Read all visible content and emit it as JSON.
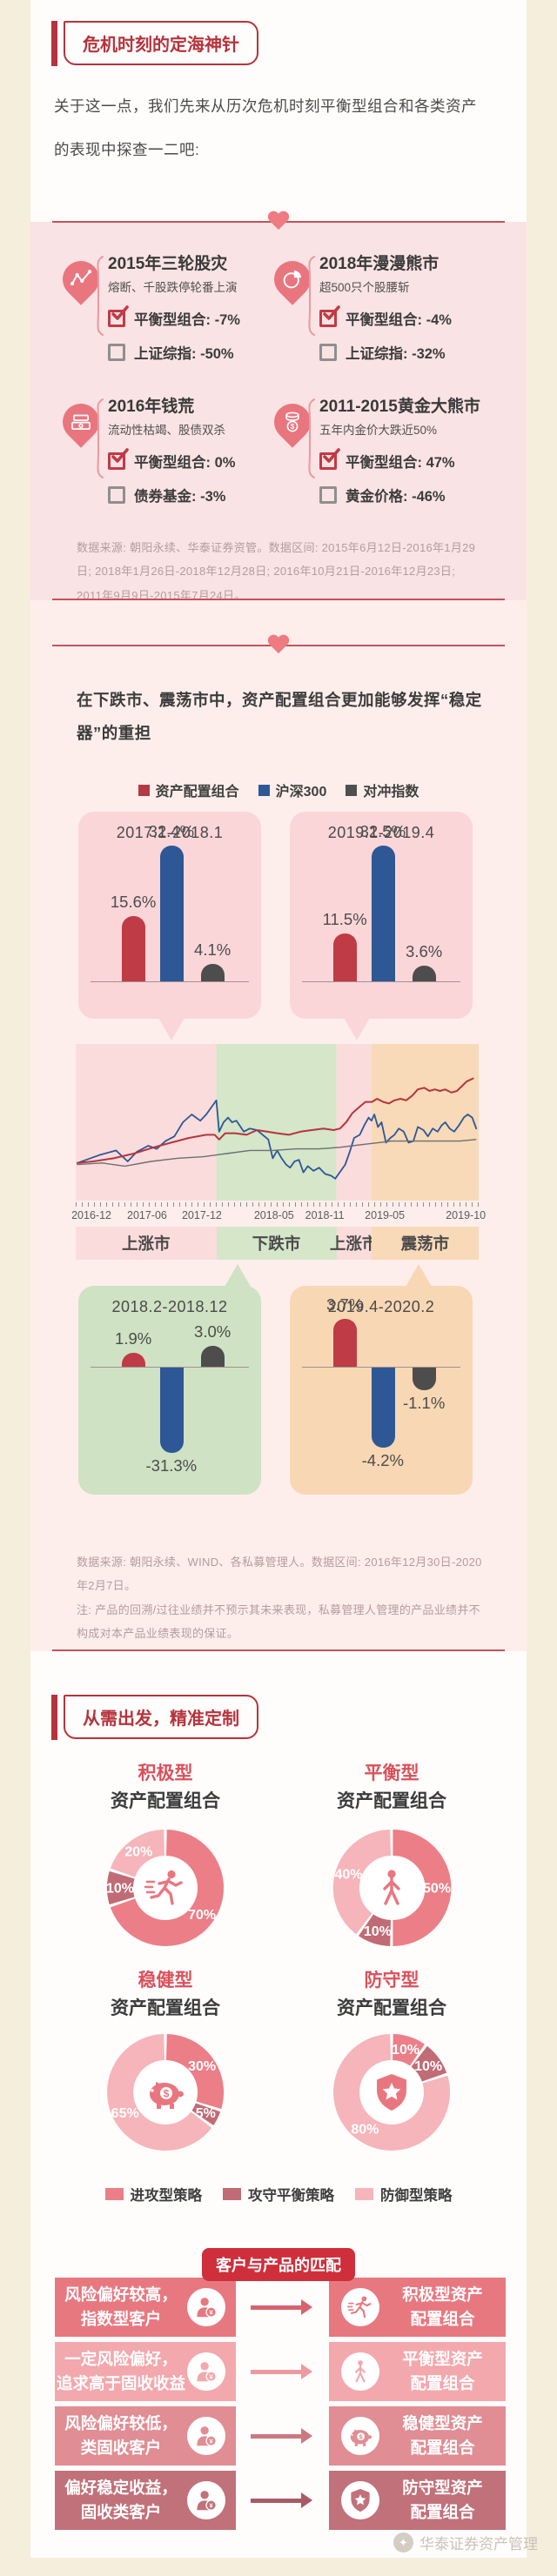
{
  "page": {
    "outer_bg": "#f6eedd",
    "column_bg": "#fffdfc",
    "accent_red": "#b5333c",
    "line_red": "#c8505a",
    "heart_color": "#ee7b81"
  },
  "section1": {
    "title": "危机时刻的定海神针",
    "intro": "关于这一点，我们先来从历次危机时刻平衡型组合和各类资产的表现中探查一二吧:",
    "panel_bg": "#fae3e4",
    "crisis_cards": [
      {
        "icon": "line-chart-pin-icon",
        "title": "2015年三轮股灾",
        "subtitle": "熔断、千股跌停轮番上演",
        "metrics": [
          {
            "checked": true,
            "label": "平衡型组合",
            "value": "-7%"
          },
          {
            "checked": false,
            "label": "上证综指",
            "value": "-50%"
          }
        ]
      },
      {
        "icon": "pie-chart-pin-icon",
        "title": "2018年漫漫熊市",
        "subtitle": "超500只个股腰斩",
        "metrics": [
          {
            "checked": true,
            "label": "平衡型组合",
            "value": "-4%"
          },
          {
            "checked": false,
            "label": "上证综指",
            "value": "-32%"
          }
        ]
      },
      {
        "icon": "cash-pin-icon",
        "title": "2016年钱荒",
        "subtitle": "流动性枯竭、股债双杀",
        "metrics": [
          {
            "checked": true,
            "label": "平衡型组合",
            "value": "0%"
          },
          {
            "checked": false,
            "label": "债券基金",
            "value": "-3%"
          }
        ]
      },
      {
        "icon": "coins-pin-icon",
        "title": "2011-2015黄金大熊市",
        "subtitle": "五年内金价大跌近50%",
        "metrics": [
          {
            "checked": true,
            "label": "平衡型组合",
            "value": "47%"
          },
          {
            "checked": false,
            "label": "黄金价格",
            "value": "-46%"
          }
        ]
      }
    ],
    "source_note": "数据来源: 朝阳永续、华泰证券资管。数据区间: 2015年6月12日-2016年1月29日; 2018年1月26日-2018年12月28日; 2016年10月21日-2016年12月23日; 2011年9月9日-2015年7月24日。"
  },
  "section2": {
    "heading": "在下跌市、震荡市中，资产配置组合更加能够发挥“稳定器”的重担",
    "legend": [
      {
        "label": "资产配置组合",
        "color": "#b23a44"
      },
      {
        "label": "沪深300",
        "color": "#2e5796"
      },
      {
        "label": "对冲指数",
        "color": "#4f4f4f"
      }
    ],
    "chart_data": [
      {
        "type": "bar",
        "title": "2017.1-2018.1",
        "panel_bg": "#fbd6d9",
        "categories": [
          "资产配置组合",
          "沪深300",
          "对冲指数"
        ],
        "values": [
          15.6,
          32.4,
          4.1
        ],
        "labels": [
          "15.6%",
          "32.4%",
          "4.1%"
        ],
        "unit": "%"
      },
      {
        "type": "bar",
        "title": "2019.1-2019.4",
        "panel_bg": "#fbd6d9",
        "categories": [
          "资产配置组合",
          "沪深300",
          "对冲指数"
        ],
        "values": [
          11.5,
          32.5,
          3.6
        ],
        "labels": [
          "11.5%",
          "32.5%",
          "3.6%"
        ],
        "unit": "%"
      },
      {
        "type": "line",
        "title": "",
        "x_ticks": [
          "2016-12",
          "2017-06",
          "2017-12",
          "2018-05",
          "2018-11",
          "2019-05",
          "2019-10"
        ],
        "x_tick_pos": [
          3.9,
          17.7,
          31.3,
          49.2,
          61.8,
          76.7,
          96.8
        ],
        "zones": [
          {
            "label": "上涨市",
            "color": "#fbdcdc",
            "span": [
              0,
              34.9
            ]
          },
          {
            "label": "下跌市",
            "color": "#d5e6c9",
            "span": [
              34.9,
              64.7
            ]
          },
          {
            "label": "上涨市",
            "color": "#fbdcdc",
            "span": [
              64.7,
              73.4
            ]
          },
          {
            "label": "震荡市",
            "color": "#f8d9b8",
            "span": [
              73.4,
              100
            ]
          }
        ],
        "series": [
          {
            "name": "沪深300",
            "color": "#2d5795",
            "width": 1.8,
            "points": [
              [
                0.4,
                76
              ],
              [
                5.8,
                71
              ],
              [
                10,
                68
              ],
              [
                12.9,
                75
              ],
              [
                15.1,
                69
              ],
              [
                18,
                65
              ],
              [
                20.1,
                67
              ],
              [
                22.3,
                62
              ],
              [
                24.5,
                59
              ],
              [
                26.6,
                50
              ],
              [
                28.8,
                45
              ],
              [
                30.9,
                49
              ],
              [
                32.4,
                45
              ],
              [
                34.9,
                36
              ],
              [
                35.6,
                56
              ],
              [
                36.7,
                50
              ],
              [
                37.8,
                47
              ],
              [
                38.8,
                50
              ],
              [
                39.9,
                49
              ],
              [
                41.7,
                56
              ],
              [
                43.2,
                54
              ],
              [
                45,
                55
              ],
              [
                46.4,
                58
              ],
              [
                47.8,
                61
              ],
              [
                48.9,
                73
              ],
              [
                50,
                68
              ],
              [
                51.1,
                73
              ],
              [
                52.2,
                77
              ],
              [
                53.2,
                79
              ],
              [
                54.3,
                75
              ],
              [
                55.4,
                74
              ],
              [
                56.5,
                82
              ],
              [
                57.6,
                78
              ],
              [
                59,
                81
              ],
              [
                60.4,
                79
              ],
              [
                61.9,
                83
              ],
              [
                63.3,
                84
              ],
              [
                64.4,
                86
              ],
              [
                65.5,
                82
              ],
              [
                66.9,
                77
              ],
              [
                68,
                69
              ],
              [
                69.1,
                60
              ],
              [
                70.5,
                58
              ],
              [
                71.6,
                52
              ],
              [
                72.7,
                47
              ],
              [
                73.4,
                49
              ],
              [
                74.1,
                45
              ],
              [
                75,
                53
              ],
              [
                75.9,
                50
              ],
              [
                77,
                63
              ],
              [
                78.1,
                60
              ],
              [
                79.1,
                58
              ],
              [
                80.2,
                54
              ],
              [
                81.4,
                56
              ],
              [
                82.6,
                63
              ],
              [
                83.8,
                62
              ],
              [
                84.9,
                53
              ],
              [
                86.3,
                55
              ],
              [
                87.4,
                59
              ],
              [
                88.6,
                54
              ],
              [
                89.8,
                56
              ],
              [
                90.8,
                52
              ],
              [
                91.7,
                50
              ],
              [
                92.8,
                54
              ],
              [
                93.9,
                56
              ],
              [
                95.1,
                52
              ],
              [
                96.3,
                47
              ],
              [
                97.3,
                45
              ],
              [
                98.4,
                47
              ],
              [
                99.4,
                54
              ]
            ]
          },
          {
            "name": "资产配置组合",
            "color": "#b5353f",
            "width": 2,
            "points": [
              [
                0.4,
                76
              ],
              [
                4.3,
                75
              ],
              [
                9.4,
                73
              ],
              [
                14.4,
                70
              ],
              [
                19.4,
                66
              ],
              [
                23.7,
                63
              ],
              [
                28.1,
                60
              ],
              [
                32.4,
                58
              ],
              [
                34.5,
                58
              ],
              [
                35.6,
                61
              ],
              [
                37.1,
                57
              ],
              [
                39.6,
                57
              ],
              [
                42.4,
                58
              ],
              [
                45,
                55
              ],
              [
                47.5,
                56
              ],
              [
                50,
                57
              ],
              [
                52.9,
                58
              ],
              [
                55.8,
                56
              ],
              [
                58.6,
                55
              ],
              [
                61.5,
                54
              ],
              [
                64,
                55
              ],
              [
                65.6,
                54
              ],
              [
                67.1,
                50
              ],
              [
                68.7,
                44
              ],
              [
                70.5,
                40
              ],
              [
                71.9,
                37
              ],
              [
                73.5,
                37
              ],
              [
                74.8,
                35
              ],
              [
                76.3,
                37
              ],
              [
                77.7,
                38
              ],
              [
                79.1,
                36
              ],
              [
                80.6,
                35
              ],
              [
                82,
                36
              ],
              [
                83.5,
                33
              ],
              [
                84.9,
                29
              ],
              [
                86.5,
                28
              ],
              [
                87.8,
                30
              ],
              [
                89.1,
                29
              ],
              [
                90.4,
                30
              ],
              [
                91.7,
                29
              ],
              [
                93.2,
                31
              ],
              [
                94.6,
                30
              ],
              [
                95.8,
                27
              ],
              [
                97,
                24
              ],
              [
                98.6,
                22
              ]
            ]
          },
          {
            "name": "对冲指数",
            "color": "#6b6f73",
            "width": 1.4,
            "points": [
              [
                0.4,
                77
              ],
              [
                6.5,
                76
              ],
              [
                12.2,
                78
              ],
              [
                18.7,
                75
              ],
              [
                25.2,
                73
              ],
              [
                31.7,
                72
              ],
              [
                37.4,
                70
              ],
              [
                43.2,
                68
              ],
              [
                48.9,
                68
              ],
              [
                54.7,
                67
              ],
              [
                60.4,
                67
              ],
              [
                65.5,
                66
              ],
              [
                68.7,
                65
              ],
              [
                71.9,
                64
              ],
              [
                75.2,
                63
              ],
              [
                78.4,
                62
              ],
              [
                82.7,
                62
              ],
              [
                87,
                62
              ],
              [
                91.3,
                62
              ],
              [
                95.3,
                62
              ],
              [
                99.3,
                61
              ]
            ]
          }
        ]
      },
      {
        "type": "bar",
        "title": "2018.2-2018.12",
        "panel_bg": "#cfe2c3",
        "categories": [
          "资产配置组合",
          "沪深300",
          "对冲指数"
        ],
        "values": [
          1.9,
          -31.3,
          3.0
        ],
        "labels": [
          "1.9%",
          "-31.3%",
          "3.0%"
        ],
        "unit": "%"
      },
      {
        "type": "bar",
        "title": "2019.4-2020.2",
        "panel_bg": "#f8d7b4",
        "categories": [
          "资产配置组合",
          "沪深300",
          "对冲指数"
        ],
        "values": [
          3.7,
          -4.2,
          -1.1
        ],
        "labels": [
          "3.7%",
          "-4.2%",
          "-1.1%"
        ],
        "unit": "%"
      }
    ],
    "bar_colors": {
      "资产配置组合": "#bf3b45",
      "沪深300": "#2e5796",
      "对冲指数": "#4d4d4d"
    },
    "source_note": "数据来源: 朝阳永续、WIND、各私募管理人。数据区间: 2016年12月30日-2020年2月7日。",
    "disclaimer": "注: 产品的回溯/过往业绩并不预示其未来表现，私募管理人管理的产品业绩并不构成对本产品业绩表现的保证。"
  },
  "section3": {
    "title": "从需出发，精准定制",
    "slice_colors": {
      "attack": "#ec7e87",
      "balanced": "#c06b75",
      "defense": "#f5b5ba"
    },
    "chart_data": [
      {
        "type": "pie",
        "title": "积极型",
        "subtitle": "资产配置组合",
        "icon": "runner-icon",
        "slices": [
          {
            "label": "70%",
            "value": 70,
            "strategy": "attack"
          },
          {
            "label": "10%",
            "value": 10,
            "strategy": "balanced"
          },
          {
            "label": "20%",
            "value": 20,
            "strategy": "defense"
          }
        ]
      },
      {
        "type": "pie",
        "title": "平衡型",
        "subtitle": "资产配置组合",
        "icon": "walker-icon",
        "slices": [
          {
            "label": "50%",
            "value": 50,
            "strategy": "attack"
          },
          {
            "label": "10%",
            "value": 10,
            "strategy": "balanced"
          },
          {
            "label": "40%",
            "value": 40,
            "strategy": "defense"
          }
        ]
      },
      {
        "type": "pie",
        "title": "稳健型",
        "subtitle": "资产配置组合",
        "icon": "piggy-icon",
        "slices": [
          {
            "label": "30%",
            "value": 30,
            "strategy": "attack"
          },
          {
            "label": "5%",
            "value": 5,
            "strategy": "balanced"
          },
          {
            "label": "65%",
            "value": 65,
            "strategy": "defense"
          }
        ]
      },
      {
        "type": "pie",
        "title": "防守型",
        "subtitle": "资产配置组合",
        "icon": "shield-icon",
        "slices": [
          {
            "label": "10%",
            "value": 10,
            "strategy": "attack"
          },
          {
            "label": "10%",
            "value": 10,
            "strategy": "balanced"
          },
          {
            "label": "80%",
            "value": 80,
            "strategy": "defense"
          }
        ]
      }
    ],
    "strategy_legend": [
      {
        "label": "进攻型策略",
        "strategy": "attack"
      },
      {
        "label": "攻守平衡策略",
        "strategy": "balanced"
      },
      {
        "label": "防御型策略",
        "strategy": "defense"
      }
    ],
    "matching": {
      "badge": "客户与产品的匹配",
      "rows": [
        {
          "customer": [
            "风险偏好较高，",
            "指数型客户"
          ],
          "customer_icon": "person-yuan-icon",
          "product_icon": "runner-icon",
          "product": [
            "积极型资产",
            "配置组合"
          ],
          "bg": "#e87880",
          "arrow": "#d6636d"
        },
        {
          "customer": [
            "一定风险偏好，",
            "追求高于固收收益"
          ],
          "customer_icon": "person-yuan-icon",
          "product_icon": "walker-icon",
          "product": [
            "平衡型资产",
            "配置组合"
          ],
          "bg": "#f3a8ad",
          "arrow": "#ec9aa0"
        },
        {
          "customer": [
            "风险偏好较低，",
            "类固收客户"
          ],
          "customer_icon": "person-yuan-icon",
          "product_icon": "piggy-icon",
          "product": [
            "稳健型资产",
            "配置组合"
          ],
          "bg": "#e08d94",
          "arrow": "#cd7881"
        },
        {
          "customer": [
            "偏好稳定收益，",
            "固收类客户"
          ],
          "customer_icon": "person-yuan-icon",
          "product_icon": "shield-icon",
          "product": [
            "防守型资产",
            "配置组合"
          ],
          "bg": "#c1717a",
          "arrow": "#aa5a64"
        }
      ]
    }
  },
  "footer": {
    "brand": "华泰证券资产管理"
  }
}
